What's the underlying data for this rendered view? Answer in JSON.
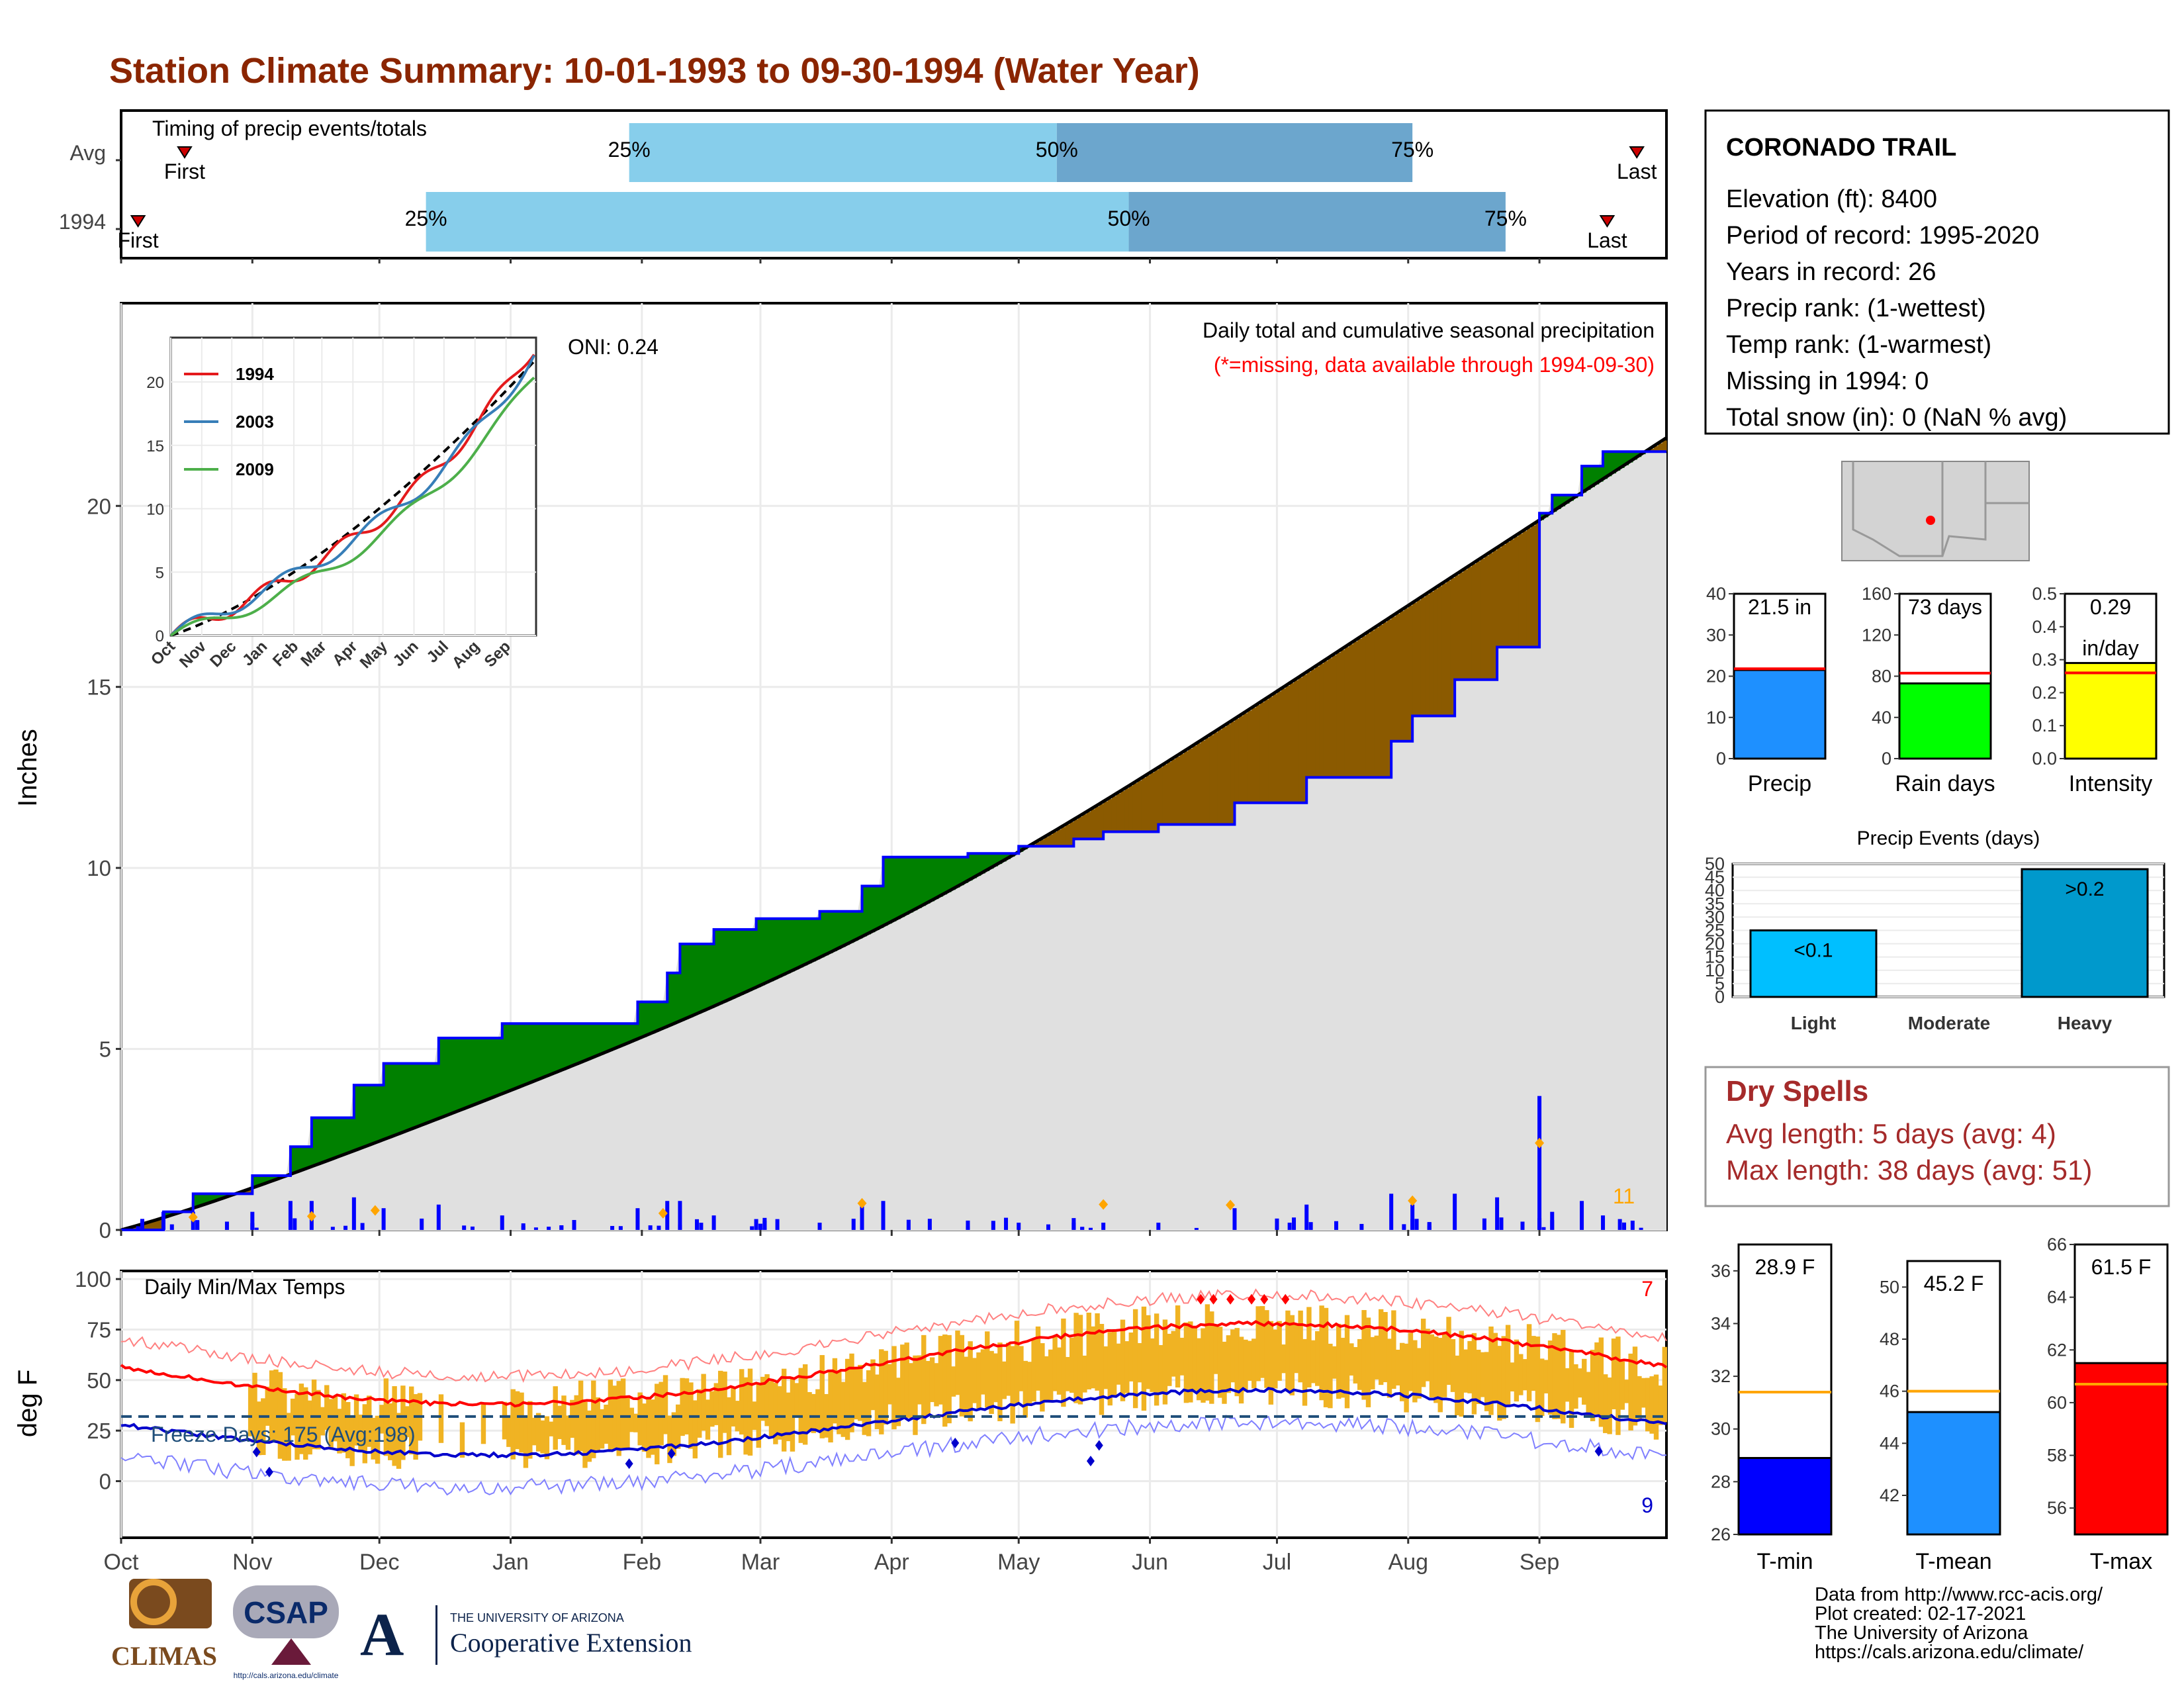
{
  "title": "Station Climate Summary: 10-01-1993 to 09-30-1994 (Water Year)",
  "timing": {
    "label": "Timing of precip events/totals",
    "rows": [
      "Avg",
      "1994"
    ],
    "first_label": "First",
    "last_label": "Last",
    "pct_labels": [
      "25%",
      "50%",
      "75%"
    ],
    "avg": {
      "first_day": 15,
      "p25": 120,
      "p50": 221,
      "p75": 305,
      "last_day": 358
    },
    "y1994": {
      "first_day": 4,
      "p25": 72,
      "p50": 238,
      "p75": 327,
      "last_day": 351
    }
  },
  "months": [
    "Oct",
    "Nov",
    "Dec",
    "Jan",
    "Feb",
    "Mar",
    "Apr",
    "May",
    "Jun",
    "Jul",
    "Aug",
    "Sep"
  ],
  "month_start_days": [
    0,
    31,
    61,
    92,
    123,
    151,
    182,
    212,
    243,
    273,
    304,
    335
  ],
  "precip": {
    "ylabel": "Inches",
    "yticks": [
      0,
      5,
      10,
      15,
      20
    ],
    "header": "Daily total and cumulative seasonal precipitation",
    "missing_note": "(*=missing, data available through 1994-09-30)",
    "oni": "ONI: 0.24",
    "extreme_count": "11",
    "colors": {
      "above": "#008000",
      "below": "#8B5A00",
      "fill": "#e0e0e0",
      "line": "#0000ff",
      "avg": "#000000",
      "marker": "#FFA500"
    }
  },
  "inset": {
    "xticks": [
      "Oct",
      "Nov",
      "Dec",
      "Jan",
      "Feb",
      "Mar",
      "Apr",
      "May",
      "Jun",
      "Jul",
      "Aug",
      "Sep"
    ],
    "yticks": [
      0,
      5,
      10,
      15,
      20
    ],
    "legend": [
      {
        "name": "1994",
        "color": "#e41a1c"
      },
      {
        "name": "2003",
        "color": "#377eb8"
      },
      {
        "name": "2009",
        "color": "#4daf4a"
      }
    ]
  },
  "temps": {
    "label": "Daily Min/Max Temps",
    "ylabel": "deg F",
    "yticks": [
      0,
      25,
      50,
      75,
      100
    ],
    "freeze_label": "Freeze Days: 175 (Avg:198)",
    "hot_count": "7",
    "cold_count": "9",
    "colors": {
      "bar": "#F0B323",
      "max": "#ff0000",
      "min": "#0000cc",
      "freeze": "#1f4e79"
    }
  },
  "station": {
    "name": "CORONADO TRAIL",
    "lines": [
      "Elevation (ft): 8400",
      "Period of record: 1995-2020",
      "Years in record: 26",
      "Precip rank:  (1-wettest)",
      "Temp rank:  (1-warmest)",
      "Missing in 1994: 0",
      "Total snow (in): 0 (NaN % avg)"
    ]
  },
  "summary_bars": [
    {
      "name": "Precip",
      "label": "21.5 in",
      "value": 21.5,
      "avg": 21.8,
      "ymax": 40,
      "yticks": [
        "0",
        "10",
        "20",
        "30",
        "40"
      ],
      "color": "#1E90FF"
    },
    {
      "name": "Rain days",
      "label": "73 days",
      "value": 73,
      "avg": 83,
      "ymax": 160,
      "yticks": [
        "0",
        "40",
        "80",
        "120",
        "160"
      ],
      "color": "#00ff00"
    },
    {
      "name": "Intensity",
      "label": "0.29",
      "label2": "in/day",
      "value": 0.29,
      "avg": 0.26,
      "ymax": 0.5,
      "yticks": [
        "0.0",
        "0.1",
        "0.2",
        "0.3",
        "0.4",
        "0.5"
      ],
      "color": "#ffff00"
    }
  ],
  "events": {
    "title": "Precip Events (days)",
    "categories": [
      "Light",
      "Moderate",
      "Heavy"
    ],
    "values": [
      25,
      0,
      48
    ],
    "bar_labels": [
      "<0.1",
      "",
      ">0.2"
    ],
    "yticks": [
      0,
      5,
      10,
      15,
      20,
      25,
      30,
      35,
      40,
      45,
      50
    ],
    "color_light": "#00BFFF",
    "color_heavy": "#0099CC"
  },
  "dry_spells": {
    "title": "Dry Spells",
    "avg_line": "Avg length: 5 days (avg: 4)",
    "max_line": "Max length: 38 days (avg: 51)"
  },
  "temp_bars": [
    {
      "name": "T-min",
      "label": "28.9 F",
      "value": 28.9,
      "avg": 31.4,
      "ymin": 26,
      "ymax": 37,
      "yticks": [
        26,
        28,
        30,
        32,
        34,
        36
      ],
      "color": "#0000ff"
    },
    {
      "name": "T-mean",
      "label": "45.2 F",
      "value": 45.2,
      "avg": 46,
      "ymin": 40.5,
      "ymax": 51,
      "yticks": [
        42,
        44,
        46,
        48,
        50
      ],
      "color": "#1E90FF"
    },
    {
      "name": "T-max",
      "label": "61.5 F",
      "value": 61.5,
      "avg": 60.7,
      "ymin": 55,
      "ymax": 66,
      "yticks": [
        56,
        58,
        60,
        62,
        64,
        66
      ],
      "color": "#ff0000"
    }
  ],
  "credits": [
    "Data from http://www.rcc-acis.org/",
    "Plot created: 02-17-2021",
    "The University of Arizona",
    "https://cals.arizona.edu/climate/"
  ],
  "logos": {
    "climas": "CLIMAS",
    "csap": "CSAP",
    "csap_url": "http://cals.arizona.edu/climate",
    "ua_line1": "THE UNIVERSITY OF ARIZONA",
    "ua_line2": "Cooperative Extension"
  }
}
